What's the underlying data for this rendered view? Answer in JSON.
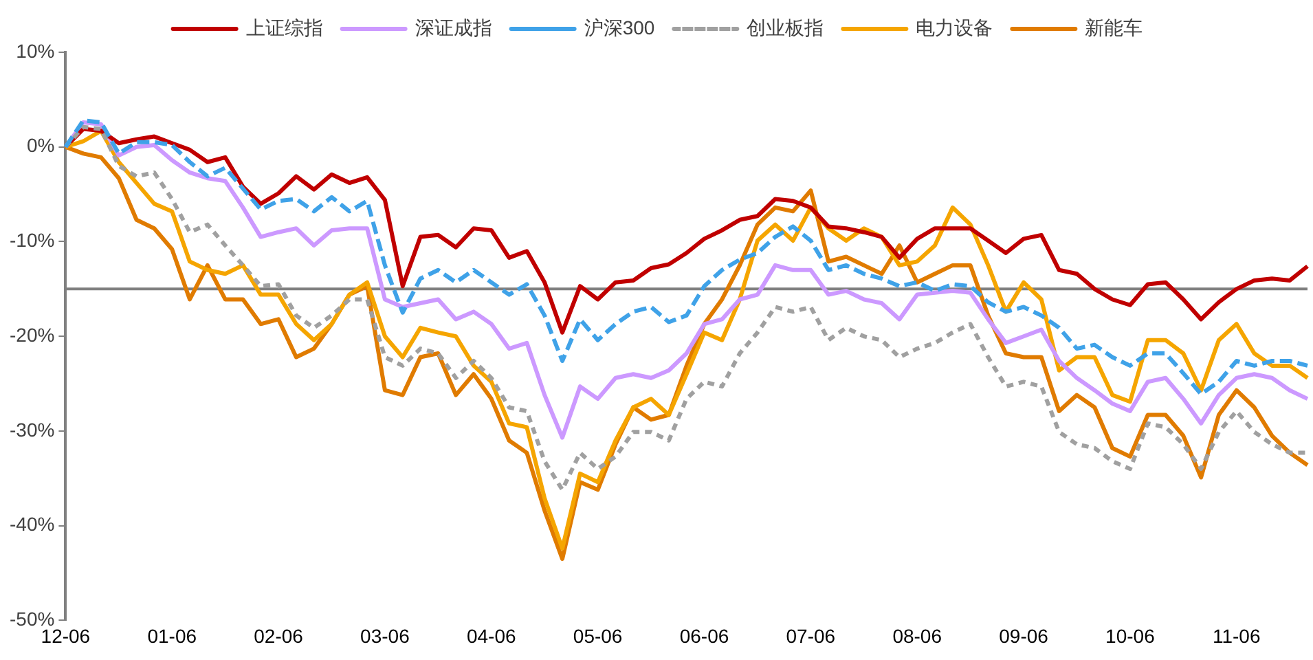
{
  "chart_data": {
    "type": "line",
    "categories": [
      "12-06",
      null,
      null,
      null,
      null,
      null,
      "01-06",
      null,
      null,
      null,
      null,
      null,
      "02-06",
      null,
      null,
      null,
      null,
      null,
      "03-06",
      null,
      null,
      null,
      null,
      null,
      "04-06",
      null,
      null,
      null,
      null,
      null,
      "05-06",
      null,
      null,
      null,
      null,
      null,
      "06-06",
      null,
      null,
      null,
      null,
      null,
      "07-06",
      null,
      null,
      null,
      null,
      null,
      "08-06",
      null,
      null,
      null,
      null,
      null,
      "09-06",
      null,
      null,
      null,
      null,
      null,
      "10-06",
      null,
      null,
      null,
      null,
      null,
      "11-06",
      null,
      null,
      null,
      null
    ],
    "series": [
      {
        "name": "上证综指",
        "color": "#c00000",
        "line_style": "solid",
        "values": [
          0,
          1.9,
          1.7,
          0.4,
          0.8,
          1.1,
          0.4,
          -0.3,
          -1.6,
          -1.1,
          -4.2,
          -6.0,
          -4.9,
          -3.1,
          -4.5,
          -2.9,
          -3.8,
          -3.2,
          -5.6,
          -14.7,
          -9.5,
          -9.3,
          -10.6,
          -8.6,
          -8.8,
          -11.7,
          -11.0,
          -14.3,
          -19.6,
          -14.7,
          -16.1,
          -14.3,
          -14.1,
          -12.8,
          -12.4,
          -11.2,
          -9.7,
          -8.8,
          -7.7,
          -7.3,
          -5.5,
          -5.7,
          -6.4,
          -8.4,
          -8.6,
          -9.0,
          -9.5,
          -11.7,
          -9.7,
          -8.6,
          -8.6,
          -8.6,
          -9.9,
          -11.2,
          -9.7,
          -9.3,
          -13.0,
          -13.4,
          -15.0,
          -16.1,
          -16.7,
          -14.5,
          -14.3,
          -16.1,
          -18.2,
          -16.4,
          -15.0,
          -14.1,
          -13.9,
          -14.1,
          -12.6
        ]
      },
      {
        "name": "深证成指",
        "color": "#cc99ff",
        "line_style": "solid",
        "values": [
          0,
          2.6,
          2.4,
          -0.9,
          0,
          0.2,
          -1.4,
          -2.7,
          -3.3,
          -3.6,
          -6.4,
          -9.5,
          -9.0,
          -8.6,
          -10.4,
          -8.8,
          -8.6,
          -8.6,
          -16.1,
          -16.9,
          -16.5,
          -16.1,
          -18.2,
          -17.4,
          -18.7,
          -21.3,
          -20.7,
          -26.2,
          -30.7,
          -25.3,
          -26.6,
          -24.4,
          -24.0,
          -24.4,
          -23.6,
          -21.8,
          -18.7,
          -18.2,
          -16.1,
          -15.6,
          -12.5,
          -13.0,
          -13.0,
          -15.6,
          -15.2,
          -16.1,
          -16.5,
          -18.2,
          -15.6,
          -15.4,
          -15.2,
          -15.4,
          -18.2,
          -20.7,
          -20.0,
          -19.3,
          -22.6,
          -24.4,
          -25.7,
          -27.1,
          -27.9,
          -24.8,
          -24.4,
          -26.6,
          -29.2,
          -26.2,
          -24.4,
          -24.0,
          -24.4,
          -25.7,
          -26.6
        ]
      },
      {
        "name": "沪深300",
        "color": "#3fa2e8",
        "line_style": "dashed",
        "values": [
          0,
          2.8,
          2.6,
          -0.7,
          0.5,
          0.5,
          0.2,
          -1.6,
          -3.1,
          -2.2,
          -4.4,
          -6.6,
          -5.7,
          -5.5,
          -6.8,
          -5.3,
          -6.8,
          -5.7,
          -12.5,
          -17.5,
          -13.9,
          -13.0,
          -14.3,
          -13.0,
          -14.3,
          -15.6,
          -14.5,
          -17.8,
          -22.6,
          -18.2,
          -20.4,
          -18.7,
          -17.4,
          -16.9,
          -18.5,
          -17.8,
          -14.7,
          -13.0,
          -11.9,
          -11.2,
          -9.5,
          -8.4,
          -9.9,
          -13.0,
          -12.5,
          -13.4,
          -13.9,
          -14.7,
          -14.3,
          -15.2,
          -14.5,
          -14.7,
          -16.4,
          -17.4,
          -16.9,
          -17.8,
          -19.1,
          -21.3,
          -20.9,
          -22.2,
          -23.1,
          -21.8,
          -21.8,
          -23.9,
          -26.1,
          -24.8,
          -22.6,
          -23.1,
          -22.6,
          -22.6,
          -23.1
        ]
      },
      {
        "name": "创业板指",
        "color": "#a0a0a0",
        "line_style": "dotted",
        "values": [
          0,
          2.1,
          1.9,
          -2.0,
          -3.1,
          -2.7,
          -5.5,
          -9.0,
          -8.2,
          -10.4,
          -12.5,
          -14.7,
          -14.5,
          -17.8,
          -19.1,
          -17.8,
          -16.1,
          -16.1,
          -22.2,
          -23.1,
          -21.3,
          -21.8,
          -24.4,
          -22.6,
          -24.4,
          -27.5,
          -27.9,
          -33.2,
          -36.2,
          -32.3,
          -34.0,
          -32.7,
          -30.1,
          -30.1,
          -31.0,
          -26.6,
          -24.8,
          -25.3,
          -21.8,
          -19.6,
          -16.9,
          -17.4,
          -16.9,
          -20.4,
          -19.1,
          -20.0,
          -20.4,
          -22.2,
          -21.3,
          -20.7,
          -19.6,
          -18.7,
          -22.2,
          -25.3,
          -24.8,
          -25.3,
          -30.1,
          -31.4,
          -31.8,
          -33.2,
          -34.0,
          -29.2,
          -29.6,
          -31.4,
          -34.0,
          -30.1,
          -27.9,
          -30.1,
          -31.4,
          -32.3,
          -32.3
        ]
      },
      {
        "name": "电力设备",
        "color": "#f5a500",
        "line_style": "solid",
        "values": [
          0,
          0.6,
          1.7,
          -1.6,
          -3.8,
          -6.0,
          -6.8,
          -12.1,
          -13.0,
          -13.4,
          -12.5,
          -15.6,
          -15.6,
          -18.7,
          -20.4,
          -18.7,
          -15.6,
          -14.3,
          -20.0,
          -22.2,
          -19.1,
          -19.6,
          -20.0,
          -23.1,
          -24.8,
          -29.2,
          -29.6,
          -37.1,
          -42.4,
          -34.5,
          -35.4,
          -31.0,
          -27.5,
          -26.6,
          -28.3,
          -24.0,
          -19.6,
          -20.4,
          -16.1,
          -9.9,
          -8.2,
          -9.9,
          -6.4,
          -8.6,
          -9.9,
          -8.6,
          -9.5,
          -12.5,
          -12.1,
          -10.4,
          -6.4,
          -8.2,
          -12.5,
          -17.4,
          -14.3,
          -16.1,
          -23.6,
          -22.2,
          -22.2,
          -26.2,
          -26.9,
          -20.4,
          -20.4,
          -21.8,
          -25.7,
          -20.4,
          -18.7,
          -21.8,
          -23.1,
          -23.1,
          -24.4
        ]
      },
      {
        "name": "新能车",
        "color": "#e07b00",
        "line_style": "solid",
        "values": [
          0,
          -0.7,
          -1.1,
          -3.3,
          -7.7,
          -8.6,
          -10.8,
          -16.1,
          -12.5,
          -16.1,
          -16.1,
          -18.7,
          -18.2,
          -22.2,
          -21.3,
          -18.7,
          -15.6,
          -14.7,
          -25.7,
          -26.2,
          -22.2,
          -21.8,
          -26.2,
          -24.0,
          -26.6,
          -31.0,
          -32.3,
          -38.4,
          -43.5,
          -35.4,
          -36.2,
          -31.4,
          -27.5,
          -28.8,
          -28.3,
          -23.1,
          -18.7,
          -16.1,
          -12.5,
          -8.2,
          -6.4,
          -6.8,
          -4.6,
          -12.1,
          -11.6,
          -12.5,
          -13.4,
          -10.4,
          -14.3,
          -13.4,
          -12.5,
          -12.5,
          -17.8,
          -21.8,
          -22.2,
          -22.2,
          -27.9,
          -26.2,
          -27.5,
          -31.8,
          -32.7,
          -28.3,
          -28.3,
          -30.5,
          -34.9,
          -28.3,
          -25.7,
          -27.5,
          -30.5,
          -32.3,
          -33.6
        ]
      }
    ],
    "ylim": [
      -50,
      10
    ],
    "yticks": [
      {
        "value": -50,
        "label": "-50%"
      },
      {
        "value": -40,
        "label": "-40%"
      },
      {
        "value": -30,
        "label": "-30%"
      },
      {
        "value": -20,
        "label": "-20%"
      },
      {
        "value": -10,
        "label": "-10%"
      },
      {
        "value": 0,
        "label": "0%"
      },
      {
        "value": 10,
        "label": "10%"
      }
    ],
    "ref_lines": [
      {
        "axis": "y",
        "value": -15,
        "color": "#808080"
      }
    ],
    "grid": false,
    "legend": "top",
    "marker": "none"
  }
}
